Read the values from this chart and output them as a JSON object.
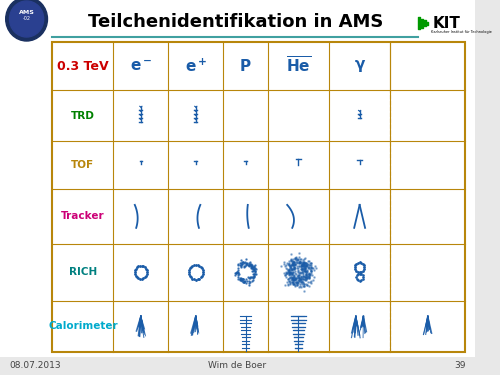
{
  "title": "Teilchenidentifikation in AMS",
  "slide_bg": "#e8e8e8",
  "table_bg": "#ffffff",
  "border_color": "#b8860b",
  "header_row_label": "0.3 TeV",
  "col_labels": [
    "e⁻",
    "e⁺",
    "P",
    "̅He",
    "γ"
  ],
  "row_labels": [
    "TRD",
    "TOF",
    "Tracker",
    "RICH",
    "Calorimeter"
  ],
  "row_label_colors": [
    "#008000",
    "#b8860b",
    "#cc0077",
    "#008080",
    "#00aacc"
  ],
  "header_label_color": "#cc0000",
  "col_label_color": "#1a5ca8",
  "date": "08.07.2013",
  "author": "Wim de Boer",
  "page": "39",
  "teal_line_color": "#40a0a0",
  "kit_green": "#009900",
  "white_bg": "#ffffff"
}
